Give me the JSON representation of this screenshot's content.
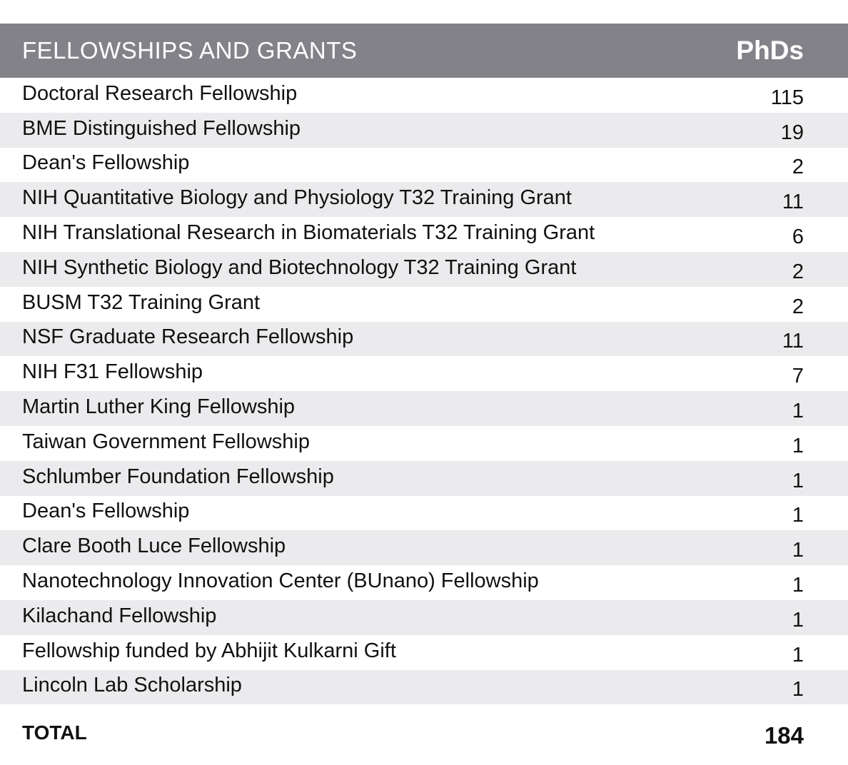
{
  "table": {
    "title": "FELLOWSHIPS AND GRANTS",
    "column_header": "PhDs",
    "rows": [
      {
        "name": "Doctoral Research Fellowship",
        "phds": "115"
      },
      {
        "name": "BME Distinguished Fellowship",
        "phds": "19"
      },
      {
        "name": "Dean's Fellowship",
        "phds": "2"
      },
      {
        "name": "NIH Quantitative Biology and Physiology T32 Training Grant",
        "phds": "11"
      },
      {
        "name": "NIH Translational Research in Biomaterials T32 Training Grant",
        "phds": "6"
      },
      {
        "name": "NIH Synthetic Biology and Biotechnology T32 Training Grant",
        "phds": "2"
      },
      {
        "name": "BUSM T32 Training Grant",
        "phds": "2"
      },
      {
        "name": "NSF Graduate Research Fellowship",
        "phds": "11"
      },
      {
        "name": "NIH F31 Fellowship",
        "phds": "7"
      },
      {
        "name": "Martin Luther King Fellowship",
        "phds": "1"
      },
      {
        "name": "Taiwan Government Fellowship",
        "phds": "1"
      },
      {
        "name": "Schlumber Foundation Fellowship",
        "phds": "1"
      },
      {
        "name": "Dean's Fellowship",
        "phds": "1"
      },
      {
        "name": "Clare Booth Luce Fellowship",
        "phds": "1"
      },
      {
        "name": "Nanotechnology Innovation Center (BUnano) Fellowship",
        "phds": "1"
      },
      {
        "name": "Kilachand Fellowship",
        "phds": "1"
      },
      {
        "name": "Fellowship funded by Abhijit Kulkarni Gift",
        "phds": "1"
      },
      {
        "name": "Lincoln Lab Scholarship",
        "phds": "1"
      }
    ],
    "total_label": "TOTAL",
    "total_value": "184"
  },
  "colors": {
    "header_background": "#848289",
    "header_text": "#ffffff",
    "alt_row_background": "#ebebed",
    "text": "#111111"
  }
}
